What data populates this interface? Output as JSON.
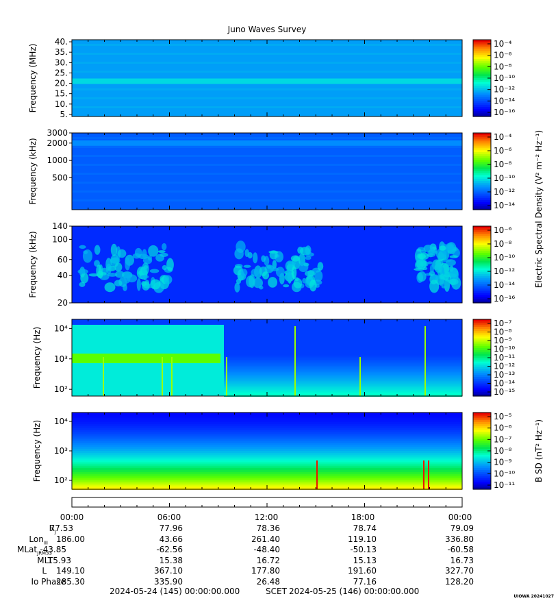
{
  "title": "Juno Waves Survey",
  "stamp": "UIOWA 20241027",
  "colorbar_labels": {
    "electric": "Electric Spectral Density (V² m⁻² Hz⁻¹)",
    "magnetic": "B SD (nT² Hz⁻¹)"
  },
  "chart_data": [
    {
      "type": "heatmap",
      "panel": 1,
      "ylabel": "Frequency (MHz)",
      "yticks": [
        "5.",
        "10.",
        "15.",
        "20.",
        "25.",
        "30.",
        "35.",
        "40."
      ],
      "ylim": [
        4,
        41
      ],
      "yscale": "linear",
      "colorbar_ticks": [
        "10⁻⁴",
        "10⁻⁶",
        "10⁻⁸",
        "10⁻¹⁰",
        "10⁻¹²",
        "10⁻¹⁴",
        "10⁻¹⁶"
      ],
      "colorbar_range": [
        -17,
        -4
      ],
      "features": {
        "background_level": -12.8,
        "band_level": -11.8,
        "band_center": 21
      }
    },
    {
      "type": "heatmap",
      "panel": 2,
      "ylabel": "Frequency (kHz)",
      "yticks": [
        "500",
        "1000",
        "2000",
        "3000"
      ],
      "ylim": [
        140,
        3000
      ],
      "yscale": "log",
      "colorbar_ticks": [
        "10⁻⁴",
        "10⁻⁶",
        "10⁻⁸",
        "10⁻¹⁰",
        "10⁻¹²",
        "10⁻¹⁴"
      ],
      "colorbar_range": [
        -15,
        -3
      ],
      "features": {
        "background_level": -12.2,
        "band_level": -11.4,
        "band_center": 2000
      }
    },
    {
      "type": "heatmap",
      "panel": 3,
      "ylabel": "Frequency (kHz)",
      "yticks": [
        "20",
        "40",
        "60",
        "100",
        "140"
      ],
      "ylim": [
        20,
        140
      ],
      "yscale": "log",
      "colorbar_ticks": [
        "10⁻⁶",
        "10⁻⁸",
        "10⁻¹⁰",
        "10⁻¹²",
        "10⁻¹⁴",
        "10⁻¹⁶"
      ],
      "colorbar_range": [
        -16,
        -6
      ],
      "features": {
        "background_level": -14.4,
        "emission_level": -12.6
      }
    },
    {
      "type": "heatmap",
      "panel": 4,
      "ylabel": "Frequency (Hz)",
      "yticks": [
        "10²",
        "10³",
        "10⁴"
      ],
      "ylim": [
        60,
        20000
      ],
      "yscale": "log",
      "colorbar_ticks": [
        "10⁻⁷",
        "10⁻⁸",
        "10⁻⁹",
        "10⁻¹⁰",
        "10⁻¹¹",
        "10⁻¹²",
        "10⁻¹³",
        "10⁻¹⁴",
        "10⁻¹⁵"
      ],
      "colorbar_range": [
        -15,
        -7
      ],
      "features": {
        "low_level": -11.2,
        "high_level": -13.5
      }
    },
    {
      "type": "heatmap",
      "panel": 5,
      "ylabel": "Frequency (Hz)",
      "yticks": [
        "10²",
        "10³",
        "10⁴"
      ],
      "ylim": [
        50,
        20000
      ],
      "yscale": "log",
      "colorbar_ticks": [
        "10⁻⁵",
        "10⁻⁶",
        "10⁻⁷",
        "10⁻⁸",
        "10⁻⁹",
        "10⁻¹⁰",
        "10⁻¹¹"
      ],
      "colorbar_range": [
        -11,
        -4.5
      ],
      "features": {
        "low_level": -5.7,
        "high_level": -10.3
      }
    }
  ],
  "ephemeris": {
    "labels": [
      "R",
      "Lon",
      "MLat",
      "MLT",
      "L",
      "Io Phase"
    ],
    "label_subscripts": [
      "J",
      "III",
      "JRM33",
      "",
      "",
      ""
    ],
    "times": [
      "00:00",
      "06:00",
      "12:00",
      "18:00",
      "00:00"
    ],
    "rows": [
      [
        "77.53",
        "77.96",
        "78.36",
        "78.74",
        "79.09"
      ],
      [
        "186.00",
        "43.66",
        "261.40",
        "119.10",
        "336.80"
      ],
      [
        "-43.85",
        "-62.56",
        "-48.40",
        "-50.13",
        "-60.58"
      ],
      [
        "15.93",
        "15.38",
        "16.72",
        "15.13",
        "16.73"
      ],
      [
        "149.10",
        "367.10",
        "177.80",
        "191.60",
        "327.70"
      ],
      [
        "285.30",
        "335.90",
        "26.48",
        "77.16",
        "128.20"
      ]
    ]
  },
  "footer": {
    "start": "2024-05-24 (145) 00:00:00.000",
    "middle": "SCET",
    "end": "2024-05-25 (146) 00:00:00.000"
  }
}
